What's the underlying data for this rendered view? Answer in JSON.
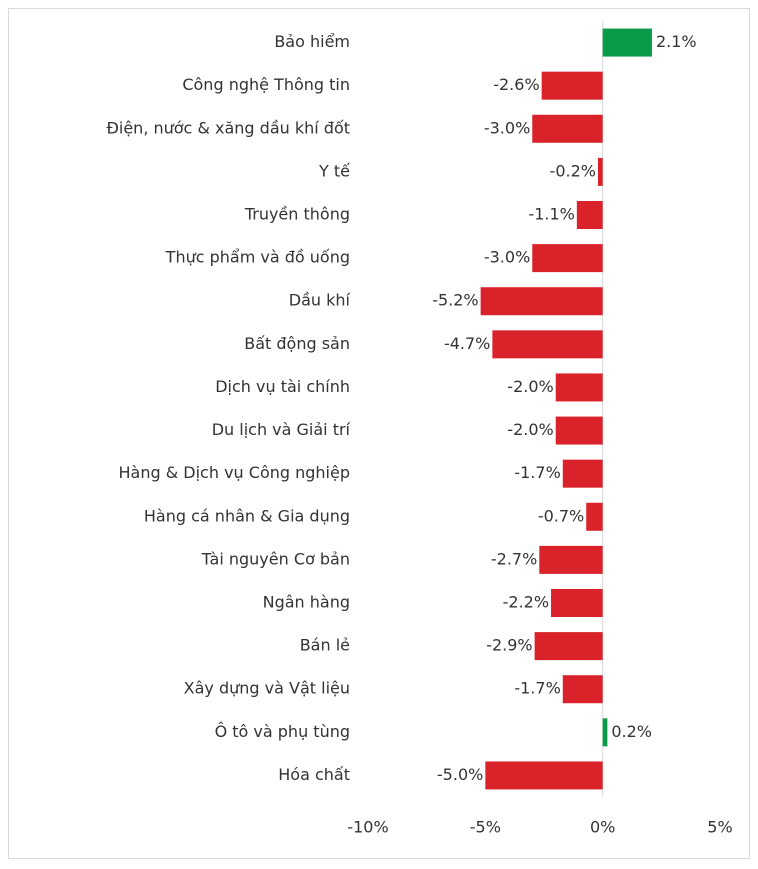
{
  "chart_data": {
    "type": "barh",
    "categories": [
      "Bảo hiểm",
      "Công nghệ Thông tin",
      "Điện, nước & xăng dầu khí đốt",
      "Y tế",
      "Truyền thông",
      "Thực phẩm và đồ uống",
      "Dầu khí",
      "Bất động sản",
      "Dịch vụ tài chính",
      "Du lịch và Giải trí",
      "Hàng & Dịch vụ Công nghiệp",
      "Hàng cá nhân & Gia dụng",
      "Tài nguyên Cơ bản",
      "Ngân hàng",
      "Bán lẻ",
      "Xây dựng và Vật liệu",
      "Ô tô và phụ tùng",
      "Hóa chất"
    ],
    "values": [
      2.1,
      -2.6,
      -3.0,
      -0.2,
      -1.1,
      -3.0,
      -5.2,
      -4.7,
      -2.0,
      -2.0,
      -1.7,
      -0.7,
      -2.7,
      -2.2,
      -2.9,
      -1.7,
      0.2,
      -5.0
    ],
    "value_labels": [
      "2.1%",
      "-2.6%",
      "-3.0%",
      "-0.2%",
      "-1.1%",
      "-3.0%",
      "-5.2%",
      "-4.7%",
      "-2.0%",
      "-2.0%",
      "-1.7%",
      "-0.7%",
      "-2.7%",
      "-2.2%",
      "-2.9%",
      "-1.7%",
      "0.2%",
      "-5.0%"
    ],
    "positive_color": "#0b9a48",
    "negative_color": "#d9222a",
    "xlim": [
      -10,
      5
    ],
    "xticks": [
      {
        "value": -10,
        "label": "-10%"
      },
      {
        "value": -5,
        "label": "-5%"
      },
      {
        "value": 0,
        "label": "0%"
      },
      {
        "value": 5,
        "label": "5%"
      }
    ],
    "grid": false
  }
}
